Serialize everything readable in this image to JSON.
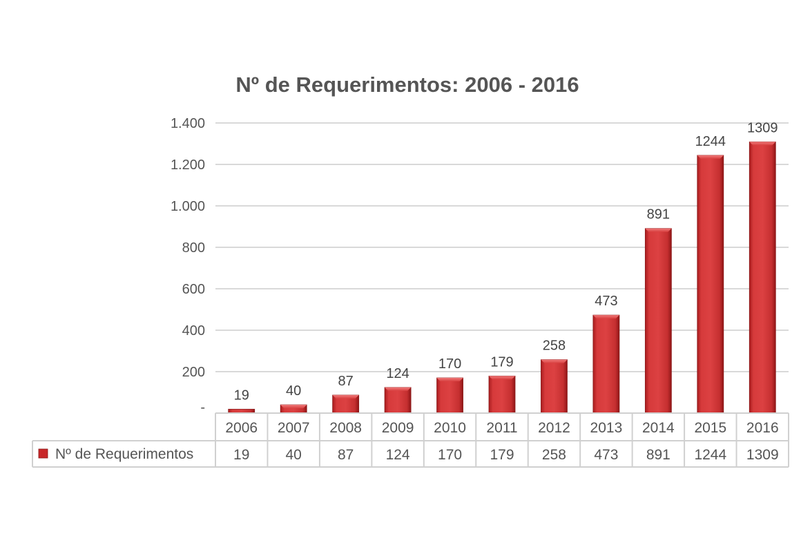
{
  "chart_data": {
    "type": "bar",
    "title": "Nº de Requerimentos: 2006 - 2016",
    "xlabel": "",
    "ylabel": "",
    "ylim": [
      0,
      1400
    ],
    "yticks": [
      0,
      200,
      400,
      600,
      800,
      1000,
      1200,
      1400
    ],
    "ytick_labels": [
      "-",
      "200",
      "400",
      "600",
      "800",
      "1.000",
      "1.200",
      "1.400"
    ],
    "grid": true,
    "categories": [
      "2006",
      "2007",
      "2008",
      "2009",
      "2010",
      "2011",
      "2012",
      "2013",
      "2014",
      "2015",
      "2016"
    ],
    "series": [
      {
        "name": "Nº de Requerimentos",
        "color": "#c8282a",
        "values": [
          19,
          40,
          87,
          124,
          170,
          179,
          258,
          473,
          891,
          1244,
          1309
        ]
      }
    ],
    "data_table": true,
    "legend": "data-table-left"
  }
}
